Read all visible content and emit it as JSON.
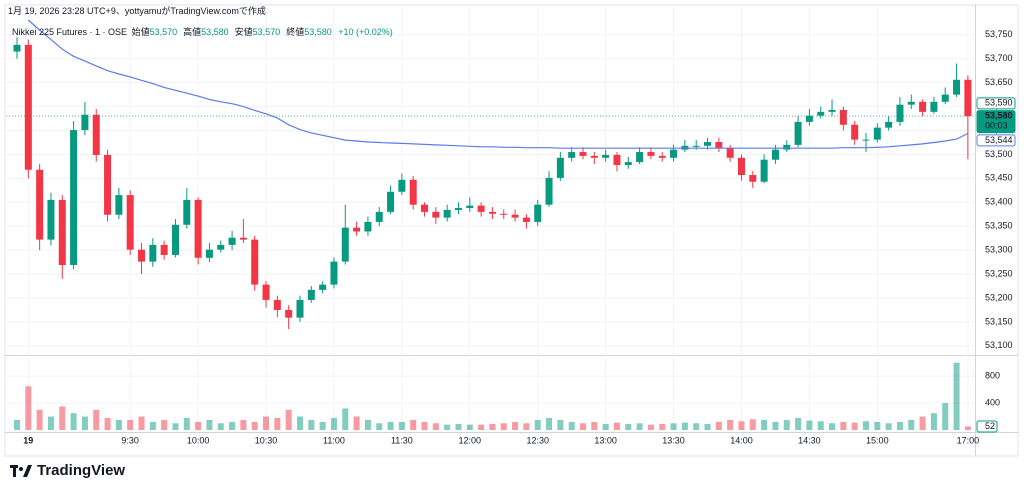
{
  "chart_data": {
    "type": "candlestick",
    "created": "1月 19, 2026 23:28 UTC+9、yottyamuがTradingView.comで作成",
    "legend": {
      "symbol": "Nikkei 225 Futures · 1 · OSE",
      "items": [
        {
          "label": "始値",
          "value": "53,570"
        },
        {
          "label": "高値",
          "value": "53,580"
        },
        {
          "label": "安値",
          "value": "53,570"
        },
        {
          "label": "終値",
          "value": "53,580"
        }
      ],
      "change": "+10 (+0.02%)"
    },
    "logo": "TradingView",
    "up_color": "#089981",
    "down_color": "#f23645",
    "vwap_color": "#5b7be8",
    "grid": true,
    "categories": [
      null,
      "19",
      null,
      null,
      null,
      null,
      null,
      null,
      null,
      null,
      "9:30",
      null,
      null,
      null,
      null,
      null,
      "10:00",
      null,
      null,
      null,
      null,
      null,
      "10:30",
      null,
      null,
      null,
      null,
      null,
      "11:00",
      null,
      null,
      null,
      null,
      null,
      "11:30",
      null,
      null,
      null,
      null,
      null,
      "12:00",
      null,
      null,
      null,
      null,
      null,
      "12:30",
      null,
      null,
      null,
      null,
      null,
      "13:00",
      null,
      null,
      null,
      null,
      null,
      "13:30",
      null,
      null,
      null,
      null,
      null,
      "14:00",
      null,
      null,
      null,
      null,
      null,
      "14:30",
      null,
      null,
      null,
      null,
      null,
      "15:00",
      null,
      null,
      null,
      null,
      null,
      null,
      null,
      "17:00"
    ],
    "ohlc": [
      [
        53715,
        53745,
        53700,
        53729
      ],
      [
        53729,
        53740,
        53450,
        53468
      ],
      [
        53468,
        53480,
        53300,
        53322
      ],
      [
        53322,
        53420,
        53310,
        53405
      ],
      [
        53405,
        53415,
        53240,
        53269
      ],
      [
        53269,
        53570,
        53260,
        53551
      ],
      [
        53551,
        53610,
        53540,
        53583
      ],
      [
        53583,
        53595,
        53485,
        53499
      ],
      [
        53499,
        53510,
        53360,
        53374
      ],
      [
        53374,
        53430,
        53365,
        53415
      ],
      [
        53415,
        53425,
        53290,
        53301
      ],
      [
        53301,
        53315,
        53250,
        53276
      ],
      [
        53276,
        53325,
        53265,
        53311
      ],
      [
        53311,
        53320,
        53280,
        53290
      ],
      [
        53290,
        53365,
        53285,
        53353
      ],
      [
        53353,
        53430,
        53345,
        53405
      ],
      [
        53405,
        53410,
        53270,
        53284
      ],
      [
        53284,
        53315,
        53275,
        53301
      ],
      [
        53301,
        53320,
        53295,
        53311
      ],
      [
        53311,
        53340,
        53300,
        53326
      ],
      [
        53326,
        53365,
        53315,
        53322
      ],
      [
        53322,
        53330,
        53215,
        53228
      ],
      [
        53228,
        53235,
        53180,
        53196
      ],
      [
        53196,
        53205,
        53160,
        53175
      ],
      [
        53175,
        53185,
        53135,
        53159
      ],
      [
        53159,
        53205,
        53150,
        53196
      ],
      [
        53196,
        53225,
        53190,
        53217
      ],
      [
        53217,
        53235,
        53210,
        53228
      ],
      [
        53228,
        53285,
        53220,
        53276
      ],
      [
        53276,
        53395,
        53270,
        53347
      ],
      [
        53347,
        53360,
        53330,
        53339
      ],
      [
        53339,
        53370,
        53330,
        53359
      ],
      [
        53359,
        53390,
        53350,
        53380
      ],
      [
        53380,
        53435,
        53375,
        53422
      ],
      [
        53422,
        53460,
        53415,
        53447
      ],
      [
        53447,
        53455,
        53385,
        53395
      ],
      [
        53395,
        53400,
        53370,
        53380
      ],
      [
        53380,
        53390,
        53355,
        53368
      ],
      [
        53368,
        53395,
        53360,
        53384
      ],
      [
        53384,
        53400,
        53375,
        53388
      ],
      [
        53388,
        53410,
        53380,
        53393
      ],
      [
        53393,
        53400,
        53370,
        53380
      ],
      [
        53380,
        53390,
        53365,
        53376
      ],
      [
        53376,
        53385,
        53365,
        53374
      ],
      [
        53374,
        53385,
        53360,
        53368
      ],
      [
        53368,
        53375,
        53345,
        53359
      ],
      [
        53359,
        53405,
        53350,
        53395
      ],
      [
        53395,
        53465,
        53390,
        53451
      ],
      [
        53451,
        53505,
        53445,
        53493
      ],
      [
        53493,
        53515,
        53485,
        53505
      ],
      [
        53505,
        53515,
        53490,
        53497
      ],
      [
        53497,
        53505,
        53480,
        53493
      ],
      [
        53493,
        53510,
        53485,
        53499
      ],
      [
        53499,
        53505,
        53465,
        53478
      ],
      [
        53478,
        53495,
        53470,
        53484
      ],
      [
        53484,
        53515,
        53480,
        53505
      ],
      [
        53505,
        53515,
        53490,
        53497
      ],
      [
        53497,
        53505,
        53485,
        53493
      ],
      [
        53493,
        53520,
        53485,
        53510
      ],
      [
        53510,
        53530,
        53505,
        53518
      ],
      [
        53518,
        53530,
        53510,
        53518
      ],
      [
        53518,
        53535,
        53510,
        53526
      ],
      [
        53526,
        53535,
        53505,
        53514
      ],
      [
        53514,
        53520,
        53485,
        53493
      ],
      [
        53493,
        53500,
        53445,
        53457
      ],
      [
        53457,
        53465,
        53430,
        53443
      ],
      [
        53443,
        53500,
        53440,
        53489
      ],
      [
        53489,
        53520,
        53480,
        53510
      ],
      [
        53510,
        53530,
        53505,
        53520
      ],
      [
        53520,
        53580,
        53515,
        53568
      ],
      [
        53568,
        53595,
        53560,
        53581
      ],
      [
        53581,
        53600,
        53575,
        53589
      ],
      [
        53589,
        53615,
        53580,
        53593
      ],
      [
        53593,
        53600,
        53550,
        53562
      ],
      [
        53562,
        53570,
        53520,
        53531
      ],
      [
        53531,
        53545,
        53505,
        53531
      ],
      [
        53531,
        53565,
        53525,
        53556
      ],
      [
        53556,
        53580,
        53550,
        53568
      ],
      [
        53568,
        53620,
        53560,
        53604
      ],
      [
        53604,
        53625,
        53595,
        53610
      ],
      [
        53610,
        53615,
        53580,
        53589
      ],
      [
        53589,
        53620,
        53585,
        53610
      ],
      [
        53610,
        53640,
        53605,
        53625
      ],
      [
        53625,
        53690,
        53620,
        53656
      ],
      [
        53656,
        53665,
        53490,
        53580
      ]
    ],
    "vwap": [
      null,
      53781,
      53760,
      53740,
      53720,
      53705,
      53695,
      53685,
      53675,
      53668,
      53662,
      53655,
      53648,
      53640,
      53634,
      53628,
      53622,
      53615,
      53610,
      53606,
      53600,
      53592,
      53585,
      53576,
      53562,
      53552,
      53545,
      53540,
      53535,
      53530,
      53528,
      53526,
      53525,
      53524,
      53523,
      53522,
      53521,
      53520,
      53519,
      53518,
      53517,
      53516,
      53516,
      53515,
      53515,
      53514,
      53514,
      53514,
      53513,
      53513,
      53513,
      53513,
      53513,
      53513,
      53513,
      53513,
      53513,
      53513,
      53513,
      53513,
      53513,
      53513,
      53513,
      53513,
      53513,
      53513,
      53513,
      53513,
      53513,
      53513,
      53513,
      53513,
      53513,
      53514,
      53514,
      53514,
      53515,
      53516,
      53518,
      53520,
      53522,
      53525,
      53528,
      53532,
      53544
    ],
    "ylim": [
      53083,
      53806
    ],
    "yticks": [
      {
        "value": 53100,
        "label": "53,100"
      },
      {
        "value": 53150,
        "label": "53,150"
      },
      {
        "value": 53200,
        "label": "53,200"
      },
      {
        "value": 53250,
        "label": "53,250"
      },
      {
        "value": 53300,
        "label": "53,300"
      },
      {
        "value": 53350,
        "label": "53,350"
      },
      {
        "value": 53400,
        "label": "53,400"
      },
      {
        "value": 53450,
        "label": "53,450"
      },
      {
        "value": 53500,
        "label": "53,500"
      },
      {
        "value": 53550,
        "label": "53,550"
      },
      {
        "value": 53600,
        "label": "53,600"
      },
      {
        "value": 53650,
        "label": "53,650"
      },
      {
        "value": 53700,
        "label": "53,700"
      },
      {
        "value": 53750,
        "label": "53,750"
      }
    ],
    "price_labels": [
      {
        "value": 53590,
        "label": "53,590"
      },
      {
        "value": 53580,
        "label": "53,580",
        "countdown": "00:03"
      },
      {
        "value": 53544,
        "label": "53,544"
      }
    ],
    "volume": [
      150,
      650,
      300,
      200,
      350,
      250,
      200,
      300,
      180,
      150,
      150,
      200,
      120,
      150,
      100,
      180,
      120,
      150,
      100,
      120,
      150,
      120,
      200,
      180,
      300,
      200,
      150,
      120,
      180,
      320,
      200,
      150,
      100,
      120,
      120,
      150,
      120,
      100,
      80,
      90,
      80,
      80,
      90,
      100,
      120,
      100,
      150,
      180,
      150,
      120,
      100,
      120,
      90,
      110,
      90,
      100,
      80,
      90,
      100,
      110,
      100,
      90,
      120,
      150,
      130,
      160,
      150,
      120,
      150,
      180,
      140,
      130,
      100,
      120,
      110,
      130,
      120,
      100,
      120,
      150,
      200,
      250,
      400,
      1000,
      52
    ],
    "vlim": [
      0,
      1070
    ],
    "vticks": [
      400,
      800
    ]
  }
}
